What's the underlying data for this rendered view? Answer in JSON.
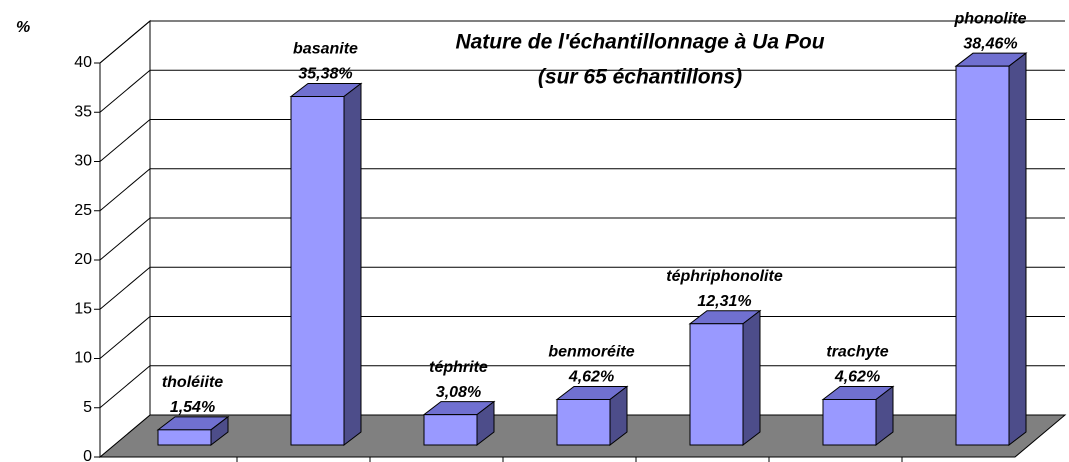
{
  "chart_data": {
    "type": "bar3d",
    "title": "Nature de l'échantillonnage à Ua Pou",
    "subtitle": "(sur 65 échantillons)",
    "y_label": "%",
    "categories": [
      "tholéiite",
      "basanite",
      "téphrite",
      "benmoréite",
      "téphriphonolite",
      "trachyte",
      "phonolite"
    ],
    "values": [
      1.54,
      35.38,
      3.08,
      4.62,
      12.31,
      4.62,
      38.46
    ],
    "value_labels": [
      "1,54%",
      "35,38%",
      "3,08%",
      "4,62%",
      "12,31%",
      "4,62%",
      "38,46%"
    ],
    "color": "#9999ff",
    "ylim": [
      0,
      40
    ],
    "yticks": [
      0,
      5,
      10,
      15,
      20,
      25,
      30,
      35,
      40
    ],
    "grid": true
  }
}
